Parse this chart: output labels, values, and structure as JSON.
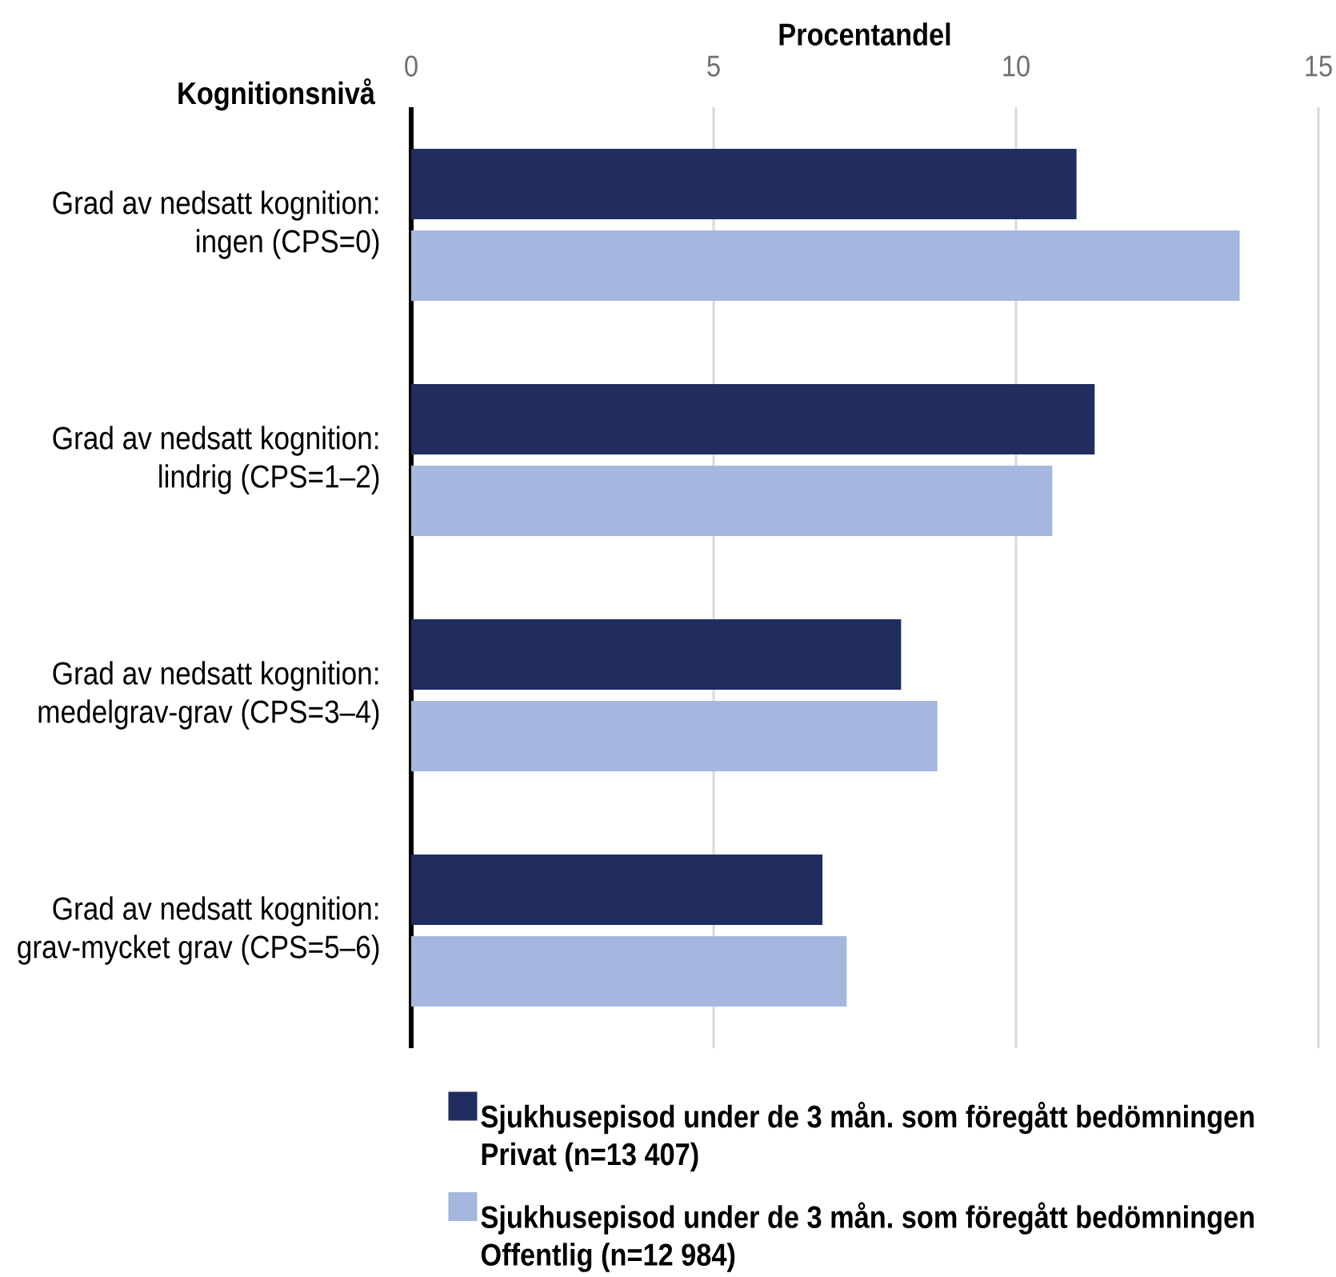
{
  "chart_data": {
    "type": "bar",
    "orientation": "horizontal",
    "xlabel": "Procentandel",
    "ylabel": "Kognitionsnivå",
    "categories": [
      "Grad av nedsatt kognition: ingen (CPS=0)",
      "Grad av nedsatt kognition: lindrig (CPS=1–2)",
      "Grad av nedsatt kognition: medelgrav-grav (CPS=3–4)",
      "Grad av nedsatt kognition: grav-mycket grav (CPS=5–6)"
    ],
    "series": [
      {
        "name": "Sjukhusepisod under de 3 mån. som föregått bedömningen Privat (n=13 407)",
        "color": "#212d5f",
        "values": [
          11.0,
          11.3,
          8.1,
          6.8
        ]
      },
      {
        "name": "Sjukhusepisod under de 3 mån. som föregått bedömningen Offentlig (n=12 984)",
        "color": "#a5b6df",
        "values": [
          13.7,
          10.6,
          8.7,
          7.2
        ]
      }
    ],
    "xlim": [
      0,
      15
    ],
    "xticks": [
      0,
      5,
      10,
      15
    ],
    "grid": "x",
    "legend": "bottom"
  }
}
